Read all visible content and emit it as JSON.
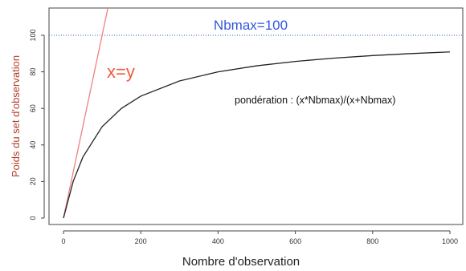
{
  "chart_data": {
    "type": "line",
    "xlabel": "Nombre d'observation",
    "ylabel": "Poids du set d'observation",
    "xlim": [
      0,
      1000
    ],
    "ylim": [
      0,
      100
    ],
    "x_ticks": [
      0,
      200,
      400,
      600,
      800,
      1000
    ],
    "y_ticks": [
      0,
      20,
      40,
      60,
      80,
      100
    ],
    "grid": false,
    "series": [
      {
        "name": "pondération : (x*Nbmax)/(x+Nbmax)",
        "color": "#222222",
        "x": [
          0,
          25,
          50,
          100,
          150,
          200,
          300,
          400,
          500,
          600,
          700,
          800,
          900,
          1000
        ],
        "y": [
          0,
          20,
          33.3,
          50,
          60,
          66.7,
          75,
          80,
          83.3,
          85.7,
          87.5,
          88.9,
          90,
          90.9
        ]
      },
      {
        "name": "x=y",
        "color": "#f08080",
        "x": [
          0,
          120
        ],
        "y": [
          0,
          120
        ]
      }
    ],
    "reference_line": {
      "label": "Nbmax=100",
      "y": 100,
      "color": "#3355dd"
    },
    "annotations": [
      {
        "text": "x=y",
        "color": "#f05a40"
      },
      {
        "text": "pondération : (x*Nbmax)/(x+Nbmax)",
        "color": "#111111"
      }
    ]
  }
}
